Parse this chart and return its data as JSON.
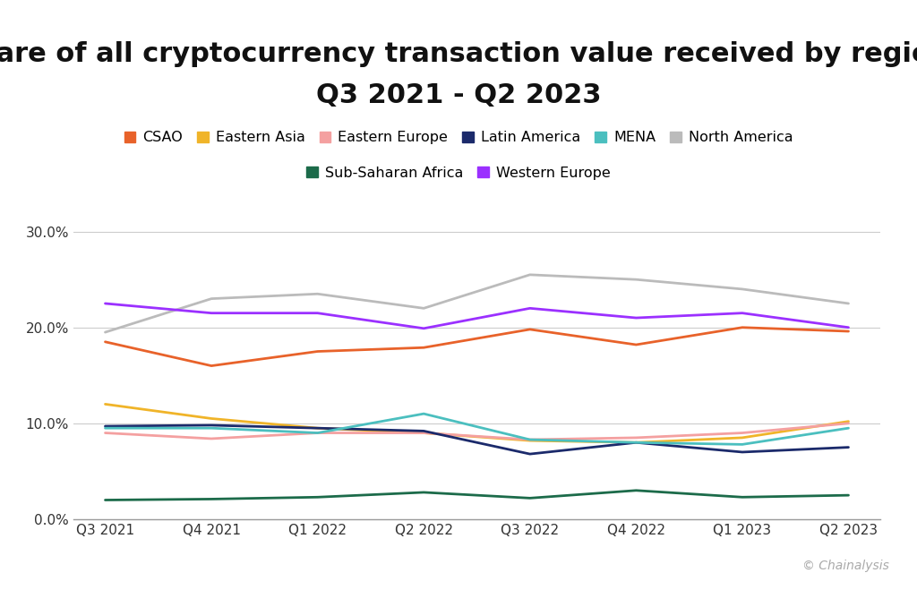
{
  "title_line1": "Share of all cryptocurrency transaction value received by region,",
  "title_line2": "Q3 2021 - Q2 2023",
  "x_labels": [
    "Q3 2021",
    "Q4 2021",
    "Q1 2022",
    "Q2 2022",
    "Q3 2022",
    "Q4 2022",
    "Q1 2023",
    "Q2 2023"
  ],
  "series": {
    "CSAO": {
      "color": "#E8622A",
      "data": [
        18.5,
        16.0,
        17.5,
        17.9,
        19.8,
        18.2,
        20.0,
        19.6
      ]
    },
    "Eastern Asia": {
      "color": "#F0B429",
      "data": [
        12.0,
        10.5,
        9.5,
        9.0,
        8.2,
        8.0,
        8.5,
        10.2
      ]
    },
    "Eastern Europe": {
      "color": "#F4A0A0",
      "data": [
        9.0,
        8.4,
        9.0,
        9.0,
        8.3,
        8.5,
        9.0,
        10.0
      ]
    },
    "Latin America": {
      "color": "#1B2A6B",
      "data": [
        9.7,
        9.8,
        9.5,
        9.2,
        6.8,
        8.0,
        7.0,
        7.5
      ]
    },
    "MENA": {
      "color": "#4BBFBF",
      "data": [
        9.5,
        9.5,
        9.0,
        11.0,
        8.3,
        8.0,
        7.8,
        9.5
      ]
    },
    "North America": {
      "color": "#BBBBBB",
      "data": [
        19.5,
        23.0,
        23.5,
        22.0,
        25.5,
        25.0,
        24.0,
        22.5
      ]
    },
    "Sub-Saharan Africa": {
      "color": "#1C6B4A",
      "data": [
        2.0,
        2.1,
        2.3,
        2.8,
        2.2,
        3.0,
        2.3,
        2.5
      ]
    },
    "Western Europe": {
      "color": "#9B30FF",
      "data": [
        22.5,
        21.5,
        21.5,
        19.9,
        22.0,
        21.0,
        21.5,
        20.0
      ]
    }
  },
  "legend_row1": [
    "CSAO",
    "Eastern Asia",
    "Eastern Europe",
    "Latin America",
    "MENA",
    "North America"
  ],
  "legend_row2": [
    "Sub-Saharan Africa",
    "Western Europe"
  ],
  "ylim": [
    0,
    32
  ],
  "yticks": [
    0,
    10,
    20,
    30
  ],
  "ytick_labels": [
    "0.0%",
    "10.0%",
    "20.0%",
    "30.0%"
  ],
  "background_color": "#FFFFFF",
  "grid_color": "#CCCCCC",
  "watermark": "© Chainalysis",
  "title_fontsize": 22,
  "legend_fontsize": 11.5,
  "tick_fontsize": 11
}
